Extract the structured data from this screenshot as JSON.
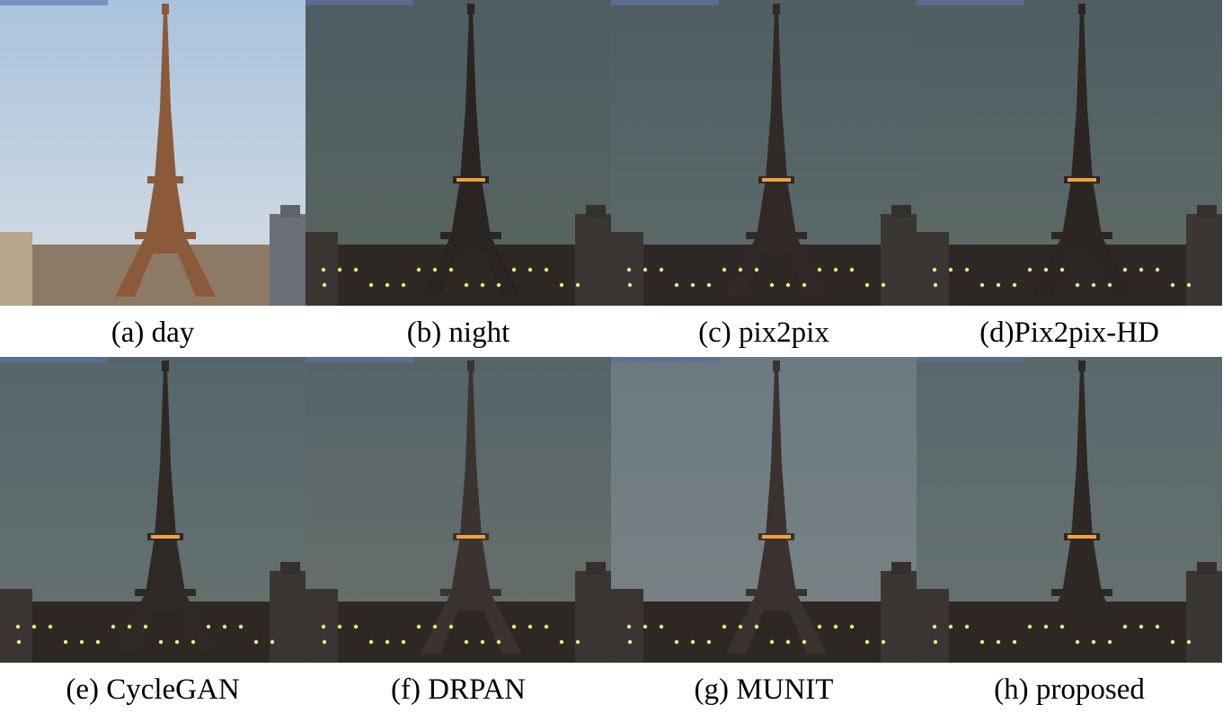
{
  "figure": {
    "panels": [
      {
        "id": "a",
        "caption": "(a) day",
        "scene": "day",
        "sky_top": "#a9c2dc",
        "sky_bottom": "#d7dee4",
        "tower": "#8a5a3a",
        "glow": 0
      },
      {
        "id": "b",
        "caption": "(b) night",
        "scene": "night",
        "sky_top": "#4e5d62",
        "sky_bottom": "#596660",
        "tower": "#2a2522",
        "glow": 1
      },
      {
        "id": "c",
        "caption": "(c) pix2pix",
        "scene": "night",
        "sky_top": "#4f5e63",
        "sky_bottom": "#5e6b6a",
        "tower": "#302925",
        "glow": 1
      },
      {
        "id": "d",
        "caption": "(d)Pix2pix-HD",
        "scene": "night",
        "sky_top": "#4e5d62",
        "sky_bottom": "#5f6c68",
        "tower": "#2c2623",
        "glow": 1
      },
      {
        "id": "e",
        "caption": "(e) CycleGAN",
        "scene": "night",
        "sky_top": "#55666a",
        "sky_bottom": "#66726f",
        "tower": "#2f2926",
        "glow": 1
      },
      {
        "id": "f",
        "caption": "(f) DRPAN",
        "scene": "night",
        "sky_top": "#556468",
        "sky_bottom": "#6a706c",
        "tower": "#3a3330",
        "glow": 1
      },
      {
        "id": "g",
        "caption": "(g) MUNIT",
        "scene": "night",
        "sky_top": "#6b7a82",
        "sky_bottom": "#7a8383",
        "tower": "#3b3230",
        "glow": 1
      },
      {
        "id": "h",
        "caption": "(h) proposed",
        "scene": "night",
        "sky_top": "#58686b",
        "sky_bottom": "#687371",
        "tower": "#2e2825",
        "glow": 1
      }
    ]
  }
}
